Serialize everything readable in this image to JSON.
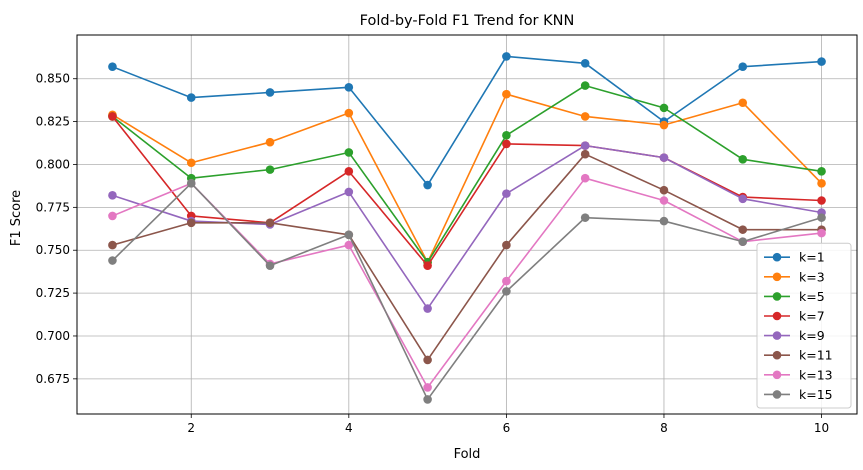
{
  "chart_data": {
    "type": "line",
    "title": "Fold-by-Fold F1 Trend for KNN",
    "xlabel": "Fold",
    "ylabel": "F1 Score",
    "x": [
      1,
      2,
      3,
      4,
      5,
      6,
      7,
      8,
      9,
      10
    ],
    "xlim": [
      0.55,
      10.45
    ],
    "ylim": [
      0.6545,
      0.8755
    ],
    "xticks": [
      2,
      4,
      6,
      8,
      10
    ],
    "yticks": [
      0.675,
      0.7,
      0.725,
      0.75,
      0.775,
      0.8,
      0.825,
      0.85
    ],
    "ytick_labels": [
      "0.675",
      "0.700",
      "0.725",
      "0.750",
      "0.775",
      "0.800",
      "0.825",
      "0.850"
    ],
    "grid": true,
    "legend_position": "lower-right",
    "series": [
      {
        "name": "k=1",
        "color": "#1f77b4",
        "values": [
          0.857,
          0.839,
          0.842,
          0.845,
          0.788,
          0.863,
          0.859,
          0.825,
          0.857,
          0.86
        ]
      },
      {
        "name": "k=3",
        "color": "#ff7f0e",
        "values": [
          0.829,
          0.801,
          0.813,
          0.83,
          0.743,
          0.841,
          0.828,
          0.823,
          0.836,
          0.789
        ]
      },
      {
        "name": "k=5",
        "color": "#2ca02c",
        "values": [
          0.828,
          0.792,
          0.797,
          0.807,
          0.743,
          0.817,
          0.846,
          0.833,
          0.803,
          0.796
        ]
      },
      {
        "name": "k=7",
        "color": "#d62728",
        "values": [
          0.828,
          0.77,
          0.766,
          0.796,
          0.741,
          0.812,
          0.811,
          0.804,
          0.781,
          0.779
        ]
      },
      {
        "name": "k=9",
        "color": "#9467bd",
        "values": [
          0.782,
          0.767,
          0.765,
          0.784,
          0.716,
          0.783,
          0.811,
          0.804,
          0.78,
          0.772
        ]
      },
      {
        "name": "k=11",
        "color": "#8c564b",
        "values": [
          0.753,
          0.766,
          0.766,
          0.759,
          0.686,
          0.753,
          0.806,
          0.785,
          0.762,
          0.762
        ]
      },
      {
        "name": "k=13",
        "color": "#e377c2",
        "values": [
          0.77,
          0.789,
          0.742,
          0.753,
          0.67,
          0.732,
          0.792,
          0.779,
          0.755,
          0.76
        ]
      },
      {
        "name": "k=15",
        "color": "#7f7f7f",
        "values": [
          0.744,
          0.789,
          0.741,
          0.759,
          0.663,
          0.726,
          0.769,
          0.767,
          0.755,
          0.769
        ]
      }
    ]
  }
}
